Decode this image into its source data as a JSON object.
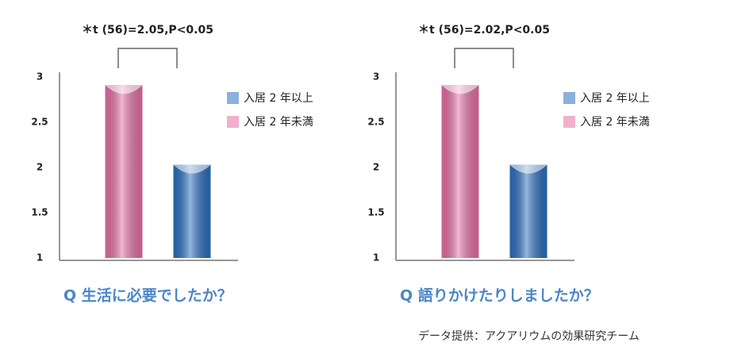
{
  "chart_data": [
    {
      "type": "bar",
      "title": "Q 生活に必要でしたか？",
      "annotation": "＊t (56)=2.05,P<0.05",
      "categories": [
        null
      ],
      "series": [
        {
          "name": "入居 2 年未満",
          "color": "#e670a6",
          "values": [
            2.91
          ]
        },
        {
          "name": "入居 2 年以上",
          "color": "#2a6fc0",
          "values": [
            2.03
          ]
        }
      ],
      "ylim": [
        1,
        3
      ],
      "yticks": [
        1,
        1.5,
        2,
        2.5,
        3
      ],
      "grid": false
    },
    {
      "type": "bar",
      "title": "Q 語りかけたりしましたか？",
      "annotation": "＊t (56)=2.02,P<0.05",
      "categories": [
        null
      ],
      "series": [
        {
          "name": "入居 2 年未満",
          "color": "#e670a6",
          "values": [
            2.91
          ]
        },
        {
          "name": "入居 2 年以上",
          "color": "#2a6fc0",
          "values": [
            2.03
          ]
        }
      ],
      "ylim": [
        1,
        3
      ],
      "yticks": [
        1,
        1.5,
        2,
        2.5,
        3
      ],
      "grid": false
    }
  ],
  "source": "データ提供：アクアリウムの効果研究チーム"
}
